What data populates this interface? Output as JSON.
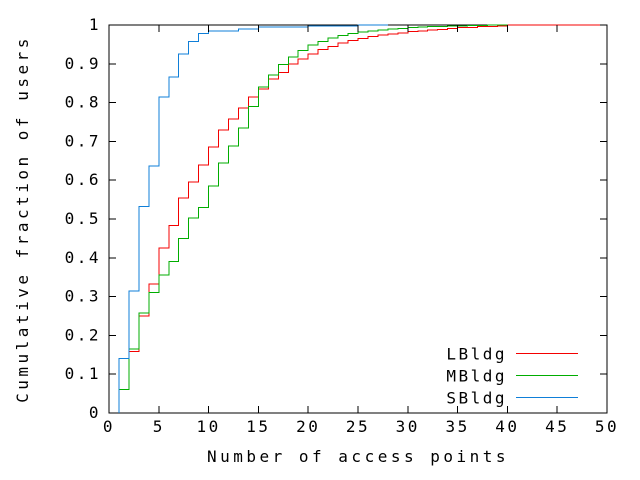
{
  "figure": {
    "background": "#ffffff",
    "text_color": "#000000",
    "border_color": "#000000"
  },
  "chart_data": {
    "type": "line",
    "subtype": "step-cdf",
    "title": "",
    "xlabel": "Number of access points",
    "ylabel": "Cumulative fraction of users",
    "xlim": [
      0,
      50
    ],
    "ylim": [
      0,
      1
    ],
    "x_ticks": [
      0,
      5,
      10,
      15,
      20,
      25,
      30,
      35,
      40,
      45,
      50
    ],
    "y_ticks": [
      "0",
      "0.1",
      "0.2",
      "0.3",
      "0.4",
      "0.5",
      "0.6",
      "0.7",
      "0.8",
      "0.9",
      "1"
    ],
    "grid": false,
    "legend_position": "inside-bottom-right",
    "legend_entries": [
      "LBldg",
      "MBldg",
      "SBldg"
    ],
    "series": [
      {
        "name": "LBldg",
        "color": "#f40000",
        "start_x": 1,
        "end_x": 50,
        "points": [
          [
            1,
            0.06
          ],
          [
            2,
            0.158
          ],
          [
            3,
            0.25
          ],
          [
            4,
            0.332
          ],
          [
            5,
            0.425
          ],
          [
            6,
            0.483
          ],
          [
            7,
            0.554
          ],
          [
            8,
            0.595
          ],
          [
            9,
            0.639
          ],
          [
            10,
            0.686
          ],
          [
            11,
            0.729
          ],
          [
            12,
            0.758
          ],
          [
            13,
            0.786
          ],
          [
            14,
            0.815
          ],
          [
            15,
            0.835
          ],
          [
            16,
            0.861
          ],
          [
            17,
            0.877
          ],
          [
            18,
            0.9
          ],
          [
            19,
            0.913
          ],
          [
            20,
            0.925
          ],
          [
            21,
            0.937
          ],
          [
            22,
            0.945
          ],
          [
            23,
            0.953
          ],
          [
            24,
            0.96
          ],
          [
            25,
            0.965
          ],
          [
            26,
            0.97
          ],
          [
            27,
            0.974
          ],
          [
            28,
            0.977
          ],
          [
            29,
            0.98
          ],
          [
            30,
            0.983
          ],
          [
            31,
            0.985
          ],
          [
            32,
            0.987
          ],
          [
            33,
            0.989
          ],
          [
            34,
            0.991
          ],
          [
            35,
            0.993
          ],
          [
            36,
            0.994
          ],
          [
            37,
            0.9955
          ],
          [
            38,
            0.9965
          ],
          [
            39,
            0.998
          ],
          [
            40,
            1.0
          ]
        ]
      },
      {
        "name": "MBldg",
        "color": "#00ad00",
        "start_x": 1,
        "end_x": 40,
        "points": [
          [
            1,
            0.06
          ],
          [
            2,
            0.165
          ],
          [
            3,
            0.258
          ],
          [
            4,
            0.31
          ],
          [
            5,
            0.356
          ],
          [
            6,
            0.39
          ],
          [
            7,
            0.45
          ],
          [
            8,
            0.503
          ],
          [
            9,
            0.53
          ],
          [
            10,
            0.585
          ],
          [
            11,
            0.644
          ],
          [
            12,
            0.688
          ],
          [
            13,
            0.734
          ],
          [
            14,
            0.79
          ],
          [
            15,
            0.84
          ],
          [
            16,
            0.871
          ],
          [
            17,
            0.898
          ],
          [
            18,
            0.917
          ],
          [
            19,
            0.934
          ],
          [
            20,
            0.948
          ],
          [
            21,
            0.958
          ],
          [
            22,
            0.966
          ],
          [
            23,
            0.973
          ],
          [
            24,
            0.978
          ],
          [
            25,
            0.982
          ],
          [
            26,
            0.985
          ],
          [
            27,
            0.9875
          ],
          [
            28,
            0.9895
          ],
          [
            29,
            0.9915
          ],
          [
            30,
            0.993
          ],
          [
            31,
            0.9945
          ],
          [
            32,
            0.9955
          ],
          [
            33,
            0.9965
          ],
          [
            34,
            0.9975
          ],
          [
            35,
            0.998
          ],
          [
            36,
            0.9985
          ],
          [
            37,
            0.999
          ],
          [
            38,
            0.9995
          ],
          [
            39,
            1.0
          ]
        ]
      },
      {
        "name": "SBldg",
        "color": "#0f7fd8",
        "start_x": 1,
        "end_x": 28,
        "points": [
          [
            1,
            0.14
          ],
          [
            2,
            0.315
          ],
          [
            3,
            0.532
          ],
          [
            4,
            0.637
          ],
          [
            5,
            0.815
          ],
          [
            6,
            0.866
          ],
          [
            7,
            0.925
          ],
          [
            8,
            0.957
          ],
          [
            9,
            0.978
          ],
          [
            10,
            0.985
          ],
          [
            13,
            0.99
          ],
          [
            15,
            0.995
          ],
          [
            20,
            0.998
          ],
          [
            25,
            1.0
          ]
        ]
      }
    ]
  }
}
